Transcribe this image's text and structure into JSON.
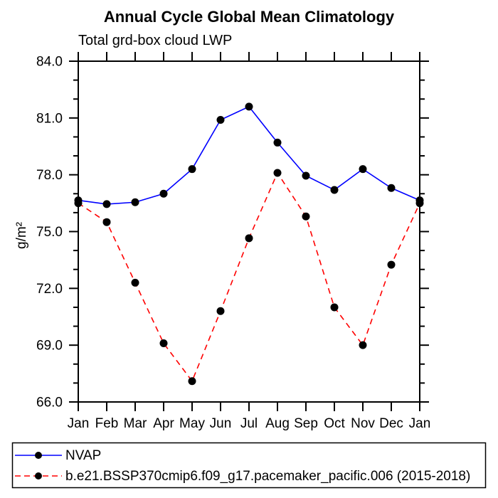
{
  "chart_data": {
    "type": "line",
    "title": "Annual Cycle Global Mean Climatology",
    "subtitle": "Total grd-box cloud LWP",
    "ylabel": "g/m²",
    "categories": [
      "Jan",
      "Feb",
      "Mar",
      "Apr",
      "May",
      "Jun",
      "Jul",
      "Aug",
      "Sep",
      "Oct",
      "Nov",
      "Dec",
      "Jan"
    ],
    "ylim": [
      66.0,
      84.0
    ],
    "ytick_major_step": 3.0,
    "ytick_minor_step": 1.0,
    "ytick_labels": [
      "66.0",
      "69.0",
      "72.0",
      "75.0",
      "78.0",
      "81.0",
      "84.0"
    ],
    "grid": false,
    "legend_position": "bottom-left-box",
    "series": [
      {
        "name": "NVAP",
        "line_color": "#0000ff",
        "line_style": "solid",
        "marker": "filled-circle",
        "marker_color": "#000000",
        "values": [
          76.65,
          76.45,
          76.55,
          77.0,
          78.3,
          80.9,
          81.6,
          79.7,
          77.95,
          77.2,
          78.3,
          77.3,
          76.65
        ]
      },
      {
        "name": "b.e21.BSSP370cmip6.f09_g17.pacemaker_pacific.006 (2015-2018)",
        "line_color": "#ff0000",
        "line_style": "dashed",
        "marker": "filled-circle",
        "marker_color": "#000000",
        "values": [
          76.5,
          75.5,
          72.3,
          69.1,
          67.1,
          70.8,
          74.65,
          78.1,
          75.8,
          71.0,
          69.0,
          73.25,
          76.5
        ]
      }
    ]
  },
  "colors": {
    "background": "#ffffff",
    "axis": "#000000",
    "marker": "#000000",
    "nvap_line": "#0000ff",
    "model_line": "#ff0000"
  }
}
